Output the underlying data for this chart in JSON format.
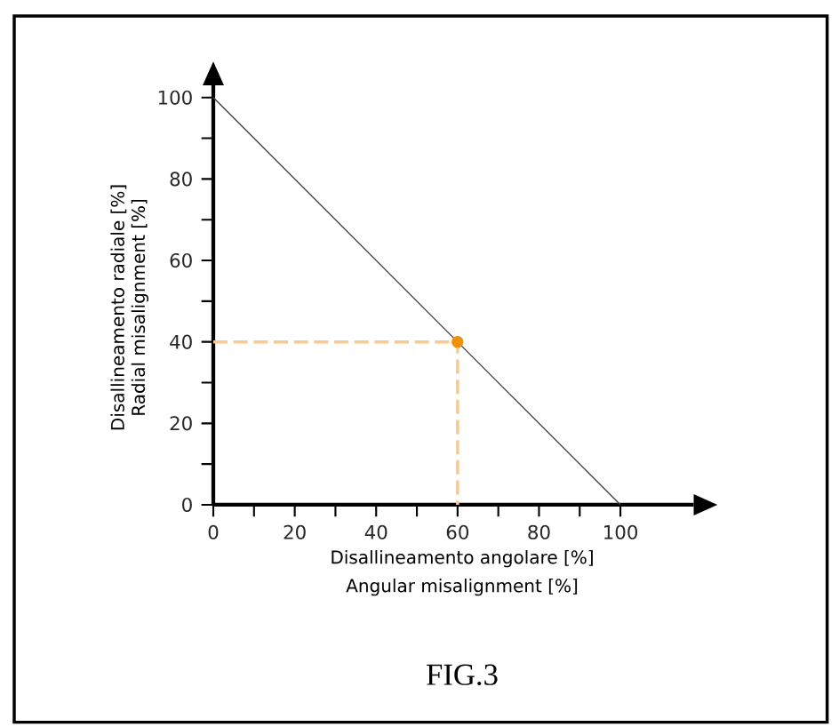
{
  "chart_data": {
    "type": "line",
    "xlabel": "Disallineamento angolare [%]",
    "ylabel": "Disallineamento radiale [%]",
    "annotations": [
      "Angular misalignment [%]",
      "Radial misalignment [%]",
      "FIG.3"
    ],
    "xlim": [
      0,
      118
    ],
    "ylim": [
      0,
      103
    ],
    "xticks": [
      0,
      {
        "value": 10,
        "label": null
      },
      20,
      {
        "value": 30,
        "label": null
      },
      40,
      {
        "value": 50,
        "label": null
      },
      60,
      {
        "value": 70,
        "label": null
      },
      80,
      {
        "value": 90,
        "label": null
      },
      100
    ],
    "yticks": [
      0,
      {
        "value": 10,
        "label": null
      },
      20,
      {
        "value": 30,
        "label": null
      },
      40,
      {
        "value": 50,
        "label": null
      },
      60,
      {
        "value": 70,
        "label": null
      },
      80,
      {
        "value": 90,
        "label": null
      },
      100
    ],
    "series": [
      {
        "type": "line",
        "x": [
          0,
          100
        ],
        "values": [
          100,
          0
        ],
        "color": "#404040",
        "line_style": "solid"
      },
      {
        "type": "line",
        "x": [
          0,
          60,
          60
        ],
        "values": [
          40,
          40,
          0
        ],
        "color": "#fcc88c",
        "line_style": "dashed"
      },
      {
        "type": "scatter",
        "x": [
          60
        ],
        "values": [
          40
        ],
        "color": "#f0900a",
        "marker": "circle"
      }
    ]
  }
}
